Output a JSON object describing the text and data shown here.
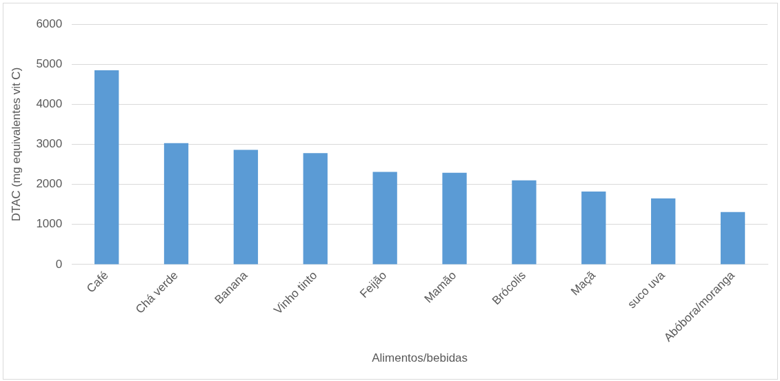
{
  "chart_data": {
    "type": "bar",
    "xlabel": "Alimentos/bebidas",
    "ylabel": "DTAC (mg equivalentes vit C)",
    "categories": [
      "Café",
      "Chá verde",
      "Banana",
      "Vinho tinto",
      "Feijão",
      "Mamão",
      "Brócolis",
      "Maçã",
      "suco uva",
      "Abóbora/moranga"
    ],
    "values": [
      4850,
      3030,
      2860,
      2780,
      2310,
      2290,
      2100,
      1820,
      1650,
      1310
    ],
    "color": "#5b9bd5",
    "ylim": [
      0,
      6000
    ],
    "yticks": [
      0,
      1000,
      2000,
      3000,
      4000,
      5000,
      6000
    ],
    "grid": "y",
    "legend": false
  }
}
